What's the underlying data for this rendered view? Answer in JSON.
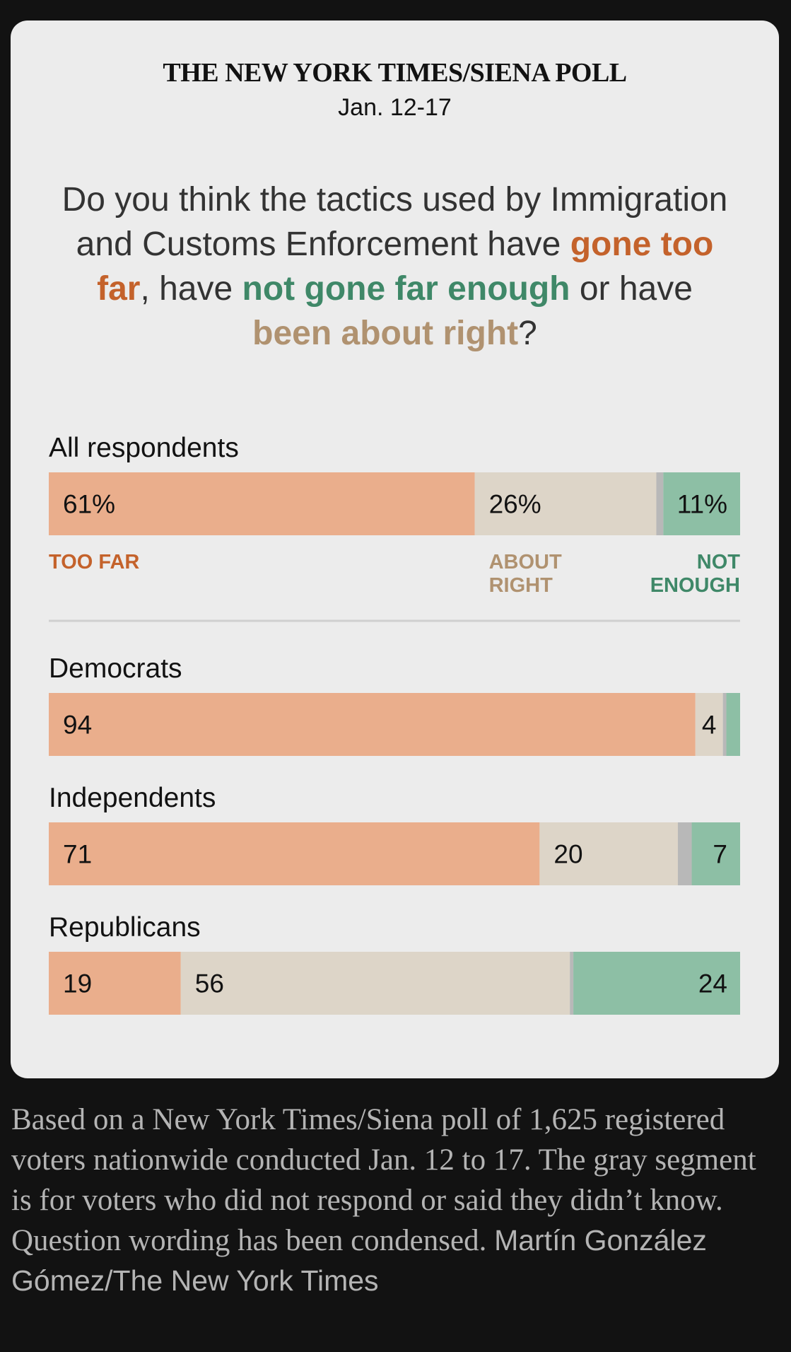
{
  "header": {
    "poll_title": "THE NEW YORK TIMES/SIENA POLL",
    "dates": "Jan. 12-17"
  },
  "question": {
    "part1": "Do you think the tactics used by Immigration and Customs Enforcement have ",
    "too_far": "gone too far",
    "part2": ", have ",
    "not_enough": "not gone far enough",
    "part3": " or have ",
    "about_right": "been about right",
    "part4": "?"
  },
  "colors": {
    "too_far": "#eaae8c",
    "about_right": "#ddd5c8",
    "no_answer": "#b8b8b8",
    "not_enough": "#8dbfa5",
    "too_far_text": "#c4622b",
    "about_right_text": "#b09270",
    "not_enough_text": "#3f8868"
  },
  "chart_data": {
    "type": "bar",
    "orientation": "horizontal",
    "stacked": true,
    "series_order": [
      "Too far",
      "About right",
      "No answer / don't know",
      "Not enough"
    ],
    "groups": [
      {
        "label": "All respondents",
        "values": [
          61,
          26,
          1,
          11
        ],
        "display": [
          "61%",
          "26%",
          "",
          "11%"
        ]
      },
      {
        "label": "Democrats",
        "values": [
          94,
          4,
          0.5,
          2
        ],
        "display": [
          "94",
          "4",
          "",
          ""
        ]
      },
      {
        "label": "Independents",
        "values": [
          71,
          20,
          2,
          7
        ],
        "display": [
          "71",
          "20",
          "",
          "7"
        ]
      },
      {
        "label": "Republicans",
        "values": [
          19,
          56,
          0.5,
          24
        ],
        "display": [
          "19",
          "56",
          "",
          "24"
        ]
      }
    ],
    "legend": {
      "too_far": "TOO FAR",
      "about_right": [
        "ABOUT",
        "RIGHT"
      ],
      "not_enough": [
        "NOT",
        "ENOUGH"
      ]
    }
  },
  "footnote": {
    "text": "Based on a New York Times/Siena poll of 1,625 registered voters nationwide conducted Jan. 12 to 17.  The gray segment is for voters who did not respond or said they didn’t know. Question wording has been condensed.  ",
    "credit": "Martín González Gómez/The New York Times"
  }
}
